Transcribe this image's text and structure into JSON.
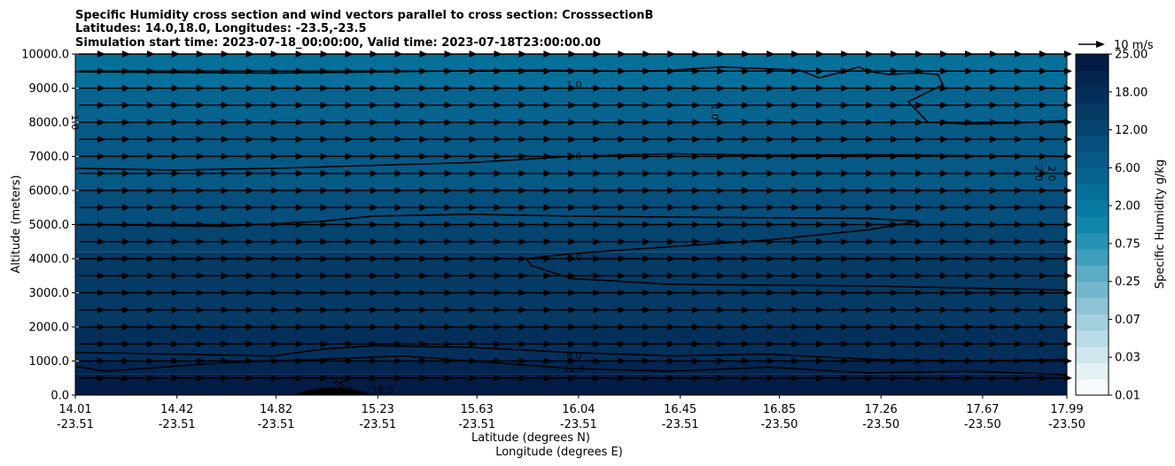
{
  "chart_data": {
    "type": "heatmap",
    "title_lines": [
      "Specific Humidity cross section and wind vectors parallel to cross section: CrosssectionB",
      "Latitudes: 14.0,18.0, Longitudes: -23.5,-23.5",
      "Simulation start time: 2023-07-18_00:00:00, Valid time: 2023-07-18T23:00:00.00"
    ],
    "ylabel": "Altitude (meters)",
    "xlabel_lines": [
      "Latitude (degrees N)",
      "Longitude (degrees E)"
    ],
    "ylim": [
      0,
      10000
    ],
    "yticks": [
      "0.0",
      "1000.0",
      "2000.0",
      "3000.0",
      "4000.0",
      "5000.0",
      "6000.0",
      "7000.0",
      "8000.0",
      "9000.0",
      "10000.0"
    ],
    "xticks": [
      {
        "lat": "14.01",
        "lon": "-23.51"
      },
      {
        "lat": "14.42",
        "lon": "-23.51"
      },
      {
        "lat": "14.82",
        "lon": "-23.51"
      },
      {
        "lat": "15.23",
        "lon": "-23.51"
      },
      {
        "lat": "15.63",
        "lon": "-23.51"
      },
      {
        "lat": "16.04",
        "lon": "-23.51"
      },
      {
        "lat": "16.45",
        "lon": "-23.51"
      },
      {
        "lat": "16.85",
        "lon": "-23.50"
      },
      {
        "lat": "17.26",
        "lon": "-23.50"
      },
      {
        "lat": "17.67",
        "lon": "-23.50"
      },
      {
        "lat": "17.99",
        "lon": "-23.50"
      }
    ],
    "xrange_fraction_ticks": [
      0,
      0.1025,
      0.2025,
      0.305,
      0.405,
      0.5075,
      0.61,
      0.71,
      0.8125,
      0.915,
      1
    ],
    "colorbar": {
      "label": "Specific Humidity g/kg",
      "levels": [
        "0.01",
        "0.03",
        "0.07",
        "0.25",
        "0.75",
        "2.00",
        "6.00",
        "12.00",
        "18.00",
        "25.00"
      ],
      "labeled_ticks": [
        "0.01",
        "0.03",
        "0.07",
        "0.25",
        "0.75",
        "2.00",
        "6.00",
        "12.00",
        "18.00",
        "25.00"
      ],
      "colors": [
        "#f7fbfd",
        "#e4f1f5",
        "#cfe6ee",
        "#b9dbe6",
        "#a3d0de",
        "#8cc4d6",
        "#74b7cd",
        "#5babc5",
        "#3f9ebc",
        "#2592b3",
        "#1086ab",
        "#077aa3",
        "#066f9a",
        "#06648f",
        "#065985",
        "#064e7b",
        "#05446f",
        "#053a65",
        "#042f5a",
        "#032550",
        "#031b45"
      ]
    },
    "bands": [
      {
        "y_from": 0,
        "y_to": 600,
        "value": 18.0
      },
      {
        "y_from": 600,
        "y_to": 1000,
        "value": 14.0
      },
      {
        "y_from": 1000,
        "y_to": 2000,
        "value": 10.0
      },
      {
        "y_from": 2000,
        "y_to": 3000,
        "value": 8.0
      },
      {
        "y_from": 3000,
        "y_to": 4200,
        "value": 6.0
      },
      {
        "y_from": 4200,
        "y_to": 5000,
        "value": 4.0
      },
      {
        "y_from": 5000,
        "y_to": 6000,
        "value": 3.0
      },
      {
        "y_from": 6000,
        "y_to": 7000,
        "value": 2.5
      },
      {
        "y_from": 7000,
        "y_to": 8000,
        "value": 2.0
      },
      {
        "y_from": 8000,
        "y_to": 9000,
        "value": 1.5
      },
      {
        "y_from": 9000,
        "y_to": 10000,
        "value": 1.0
      }
    ],
    "contour_labels": [
      "1.0",
      "1.0",
      "2.0",
      "2.0",
      "2.0",
      "4.0",
      "8.0",
      "12.0",
      "16.0",
      "16.0",
      "1.0"
    ],
    "wind_reference": {
      "label": "10 m/s",
      "speed": 10
    },
    "wind": {
      "u": 5,
      "v": 0,
      "rows_altitudes": [
        500,
        1000,
        1500,
        2000,
        2500,
        3000,
        3500,
        4000,
        4500,
        5000,
        5500,
        6000,
        6500,
        7000,
        7500,
        8000,
        8500,
        9000,
        9500,
        10000
      ],
      "columns": 40
    },
    "grid": true
  }
}
